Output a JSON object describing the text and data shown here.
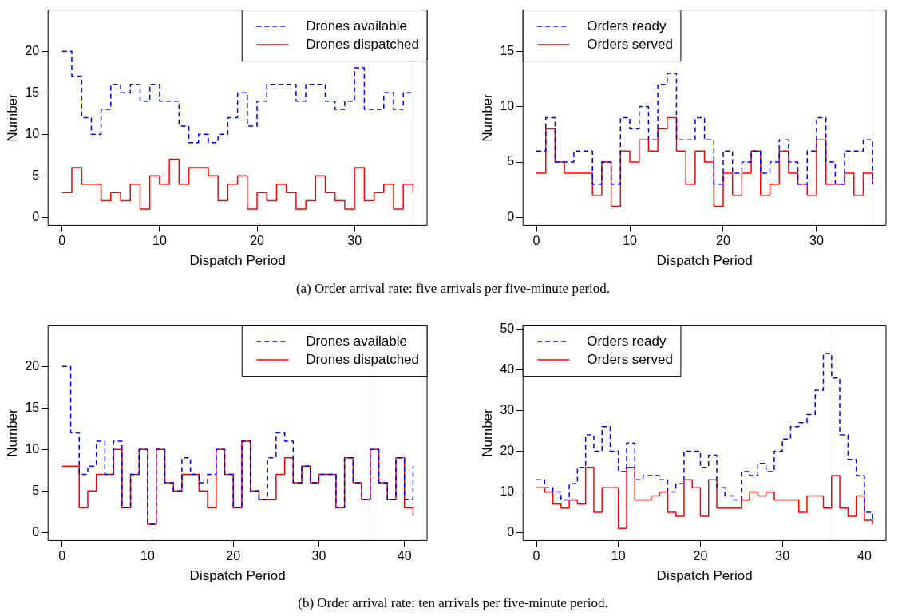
{
  "chart_data": [
    {
      "type": "step",
      "xlabel": "Dispatch Period",
      "ylabel": "Number",
      "legend": "top right",
      "x": [
        0,
        1,
        2,
        3,
        4,
        5,
        6,
        7,
        8,
        9,
        10,
        11,
        12,
        13,
        14,
        15,
        16,
        17,
        18,
        19,
        20,
        21,
        22,
        23,
        24,
        25,
        26,
        27,
        28,
        29,
        30,
        31,
        32,
        33,
        34,
        35,
        36
      ],
      "series": [
        {
          "name": "Drones available",
          "color": "#0000ff",
          "line_style": "dashed",
          "values": [
            20,
            17,
            12,
            10,
            13,
            16,
            15,
            16,
            14,
            16,
            14,
            14,
            11,
            9,
            10,
            9,
            10,
            12,
            15,
            11,
            14,
            16,
            16,
            16,
            14,
            16,
            16,
            14,
            13,
            14,
            18,
            13,
            13,
            15,
            13,
            15,
            15
          ]
        },
        {
          "name": "Drones dispatched",
          "color": "#ff0000",
          "line_style": "solid",
          "values": [
            3,
            6,
            4,
            4,
            2,
            3,
            2,
            4,
            1,
            5,
            4,
            7,
            4,
            6,
            6,
            5,
            2,
            4,
            5,
            1,
            3,
            2,
            4,
            3,
            1,
            2,
            5,
            3,
            2,
            1,
            6,
            2,
            3,
            4,
            1,
            4,
            3
          ]
        }
      ],
      "xlim": [
        -1.44,
        37.44
      ],
      "xticks": [
        0,
        10,
        20,
        30
      ],
      "ylim": [
        -0.96,
        24.96
      ],
      "yticks": [
        0,
        5,
        10,
        15,
        20
      ],
      "ref_lines": [
        {
          "axis": "x",
          "value": 36,
          "color": "#bebebe",
          "line_style": "dotted"
        }
      ],
      "annotations": [
        "(a) Order arrival rate: five arrivals per five-minute period."
      ]
    },
    {
      "type": "step",
      "xlabel": "Dispatch Period",
      "ylabel": "Number",
      "legend": "top left",
      "x": [
        0,
        1,
        2,
        3,
        4,
        5,
        6,
        7,
        8,
        9,
        10,
        11,
        12,
        13,
        14,
        15,
        16,
        17,
        18,
        19,
        20,
        21,
        22,
        23,
        24,
        25,
        26,
        27,
        28,
        29,
        30,
        31,
        32,
        33,
        34,
        35,
        36
      ],
      "series": [
        {
          "name": "Orders ready",
          "color": "#0000ff",
          "line_style": "dashed",
          "values": [
            6,
            9,
            5,
            5,
            6,
            6,
            3,
            5,
            3,
            9,
            8,
            10,
            7,
            12,
            13,
            7,
            7,
            9,
            7,
            3,
            6,
            4,
            5,
            6,
            4,
            5,
            7,
            5,
            3,
            6,
            9,
            5,
            3,
            6,
            6,
            7,
            3
          ]
        },
        {
          "name": "Orders served",
          "color": "#ff0000",
          "line_style": "solid",
          "values": [
            4,
            8,
            5,
            4,
            4,
            4,
            2,
            5,
            1,
            6,
            5,
            7,
            6,
            8,
            9,
            6,
            3,
            6,
            5,
            1,
            4,
            2,
            4,
            6,
            2,
            3,
            6,
            4,
            3,
            2,
            7,
            3,
            3,
            4,
            2,
            4,
            3
          ]
        }
      ],
      "xlim": [
        -1.44,
        37.44
      ],
      "xticks": [
        0,
        10,
        20,
        30
      ],
      "ylim": [
        -0.72,
        18.72
      ],
      "yticks": [
        0,
        5,
        10,
        15
      ],
      "ref_lines": [
        {
          "axis": "x",
          "value": 36,
          "color": "#bebebe",
          "line_style": "dotted"
        }
      ]
    },
    {
      "type": "step",
      "xlabel": "Dispatch Period",
      "ylabel": "Number",
      "legend": "top right",
      "x": [
        0,
        1,
        2,
        3,
        4,
        5,
        6,
        7,
        8,
        9,
        10,
        11,
        12,
        13,
        14,
        15,
        16,
        17,
        18,
        19,
        20,
        21,
        22,
        23,
        24,
        25,
        26,
        27,
        28,
        29,
        30,
        31,
        32,
        33,
        34,
        35,
        36,
        37,
        38,
        39,
        40,
        41
      ],
      "series": [
        {
          "name": "Drones available",
          "color": "#0000ff",
          "line_style": "dashed",
          "values": [
            20,
            12,
            7,
            8,
            11,
            7,
            11,
            3,
            7,
            10,
            1,
            10,
            6,
            5,
            9,
            7,
            6,
            7,
            10,
            7,
            3,
            11,
            5,
            4,
            9,
            12,
            11,
            6,
            8,
            6,
            7,
            7,
            3,
            9,
            6,
            4,
            10,
            6,
            4,
            9,
            4,
            8
          ]
        },
        {
          "name": "Drones dispatched",
          "color": "#ff0000",
          "line_style": "solid",
          "values": [
            8,
            8,
            3,
            5,
            7,
            7,
            10,
            3,
            7,
            10,
            1,
            10,
            6,
            5,
            7,
            7,
            5,
            3,
            10,
            7,
            3,
            11,
            5,
            4,
            4,
            7,
            9,
            6,
            8,
            6,
            7,
            7,
            3,
            9,
            6,
            4,
            10,
            6,
            4,
            9,
            3,
            2
          ]
        }
      ],
      "xlim": [
        -1.64,
        42.64
      ],
      "xticks": [
        0,
        10,
        20,
        30,
        40
      ],
      "ylim": [
        -0.96,
        24.96
      ],
      "yticks": [
        0,
        5,
        10,
        15,
        20
      ],
      "ref_lines": [
        {
          "axis": "x",
          "value": 36,
          "color": "#bebebe",
          "line_style": "dotted"
        }
      ],
      "annotations": [
        "(b) Order arrival rate: ten arrivals per five-minute period."
      ]
    },
    {
      "type": "step",
      "xlabel": "Dispatch Period",
      "ylabel": "Number",
      "legend": "top left",
      "x": [
        0,
        1,
        2,
        3,
        4,
        5,
        6,
        7,
        8,
        9,
        10,
        11,
        12,
        13,
        14,
        15,
        16,
        17,
        18,
        19,
        20,
        21,
        22,
        23,
        24,
        25,
        26,
        27,
        28,
        29,
        30,
        31,
        32,
        33,
        34,
        35,
        36,
        37,
        38,
        39,
        40,
        41
      ],
      "series": [
        {
          "name": "Orders ready",
          "color": "#0000ff",
          "line_style": "dashed",
          "values": [
            13,
            11,
            10,
            8,
            12,
            16,
            24,
            20,
            26,
            20,
            15,
            22,
            13,
            14,
            14,
            13,
            10,
            12,
            20,
            20,
            16,
            19,
            11,
            9,
            8,
            15,
            14,
            17,
            15,
            20,
            23,
            26,
            27,
            29,
            35,
            44,
            38,
            24,
            18,
            14,
            5,
            3
          ]
        },
        {
          "name": "Orders served",
          "color": "#ff0000",
          "line_style": "solid",
          "values": [
            11,
            10,
            7,
            6,
            8,
            7,
            16,
            5,
            11,
            11,
            1,
            16,
            8,
            8,
            9,
            10,
            5,
            4,
            13,
            11,
            4,
            13,
            6,
            6,
            6,
            8,
            10,
            9,
            10,
            8,
            8,
            8,
            5,
            9,
            9,
            6,
            14,
            6,
            4,
            9,
            3,
            2
          ]
        }
      ],
      "xlim": [
        -1.64,
        42.64
      ],
      "xticks": [
        0,
        10,
        20,
        30,
        40
      ],
      "ylim": [
        -1.96,
        50.96
      ],
      "yticks": [
        0,
        10,
        20,
        30,
        40,
        50
      ],
      "ref_lines": [
        {
          "axis": "x",
          "value": 36,
          "color": "#bebebe",
          "line_style": "dotted"
        }
      ]
    }
  ]
}
